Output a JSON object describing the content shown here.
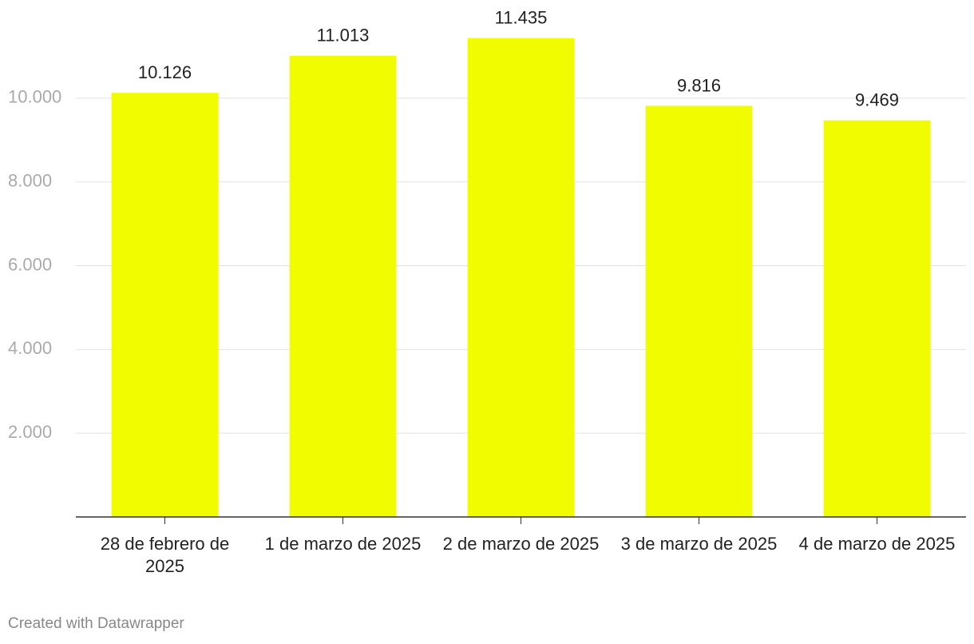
{
  "chart_data": {
    "type": "bar",
    "categories": [
      "28 de febrero de 2025",
      "1 de marzo de 2025",
      "2 de marzo de 2025",
      "3 de marzo de 2025",
      "4 de marzo de 2025"
    ],
    "values": [
      10126,
      11013,
      11435,
      9816,
      9469
    ],
    "value_labels": [
      "10.126",
      "11.013",
      "11.435",
      "9.816",
      "9.469"
    ],
    "color": "#f2fc00",
    "ylim": [
      0,
      12000
    ],
    "yticks": [
      {
        "value": 2000,
        "label": "2.000"
      },
      {
        "value": 4000,
        "label": "4.000"
      },
      {
        "value": 6000,
        "label": "6.000"
      },
      {
        "value": 8000,
        "label": "8.000"
      },
      {
        "value": 10000,
        "label": "10.000"
      }
    ],
    "grid": true,
    "credit": "Created with Datawrapper"
  }
}
